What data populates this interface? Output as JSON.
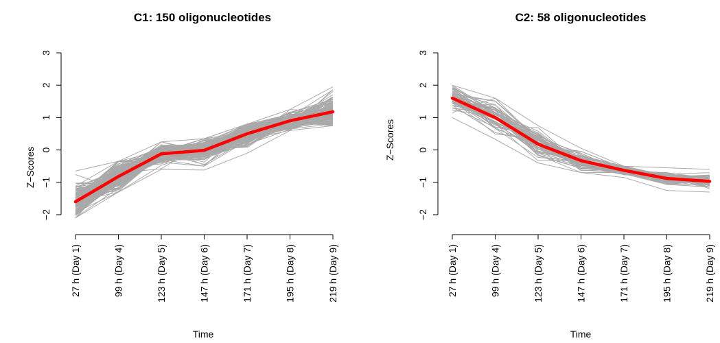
{
  "chart_data": [
    {
      "type": "line",
      "title": "C1: 150 oligonucleotides",
      "xlabel": "Time",
      "ylabel": "Z−Scores",
      "categories": [
        "27 h (Day 1)",
        "99 h (Day 4)",
        "123 h (Day 5)",
        "147 h (Day 6)",
        "171 h (Day 7)",
        "195 h (Day 8)",
        "219 h (Day 9)"
      ],
      "ylim": [
        -2,
        3
      ],
      "yticks": [
        "−2",
        "−1",
        "0",
        "1",
        "2",
        "3"
      ],
      "grid": false,
      "member_series_color": "#a9a9a9",
      "mean_series_color": "#ff0000",
      "member_count": 150,
      "member_spread": [
        0.28,
        0.22,
        0.15,
        0.17,
        0.17,
        0.13,
        0.25
      ],
      "mean_values": [
        -1.6,
        -0.82,
        -0.12,
        -0.01,
        0.5,
        0.9,
        1.18
      ],
      "member_range_low": [
        -2.1,
        -1.3,
        -0.6,
        -0.62,
        -0.1,
        0.6,
        0.75
      ],
      "member_range_high": [
        -0.65,
        -0.35,
        0.25,
        0.35,
        0.8,
        1.25,
        1.95
      ]
    },
    {
      "type": "line",
      "title": "C2: 58 oligonucleotides",
      "xlabel": "Time",
      "ylabel": "Z−Scores",
      "categories": [
        "27 h (Day 1)",
        "99 h (Day 4)",
        "123 h (Day 5)",
        "147 h (Day 6)",
        "171 h (Day 7)",
        "195 h (Day 8)",
        "219 h (Day 9)"
      ],
      "ylim": [
        -2,
        3
      ],
      "yticks": [
        "−2",
        "−1",
        "0",
        "1",
        "2",
        "3"
      ],
      "grid": false,
      "member_series_color": "#a9a9a9",
      "mean_series_color": "#ff0000",
      "member_count": 58,
      "member_spread": [
        0.2,
        0.22,
        0.22,
        0.15,
        0.08,
        0.1,
        0.12
      ],
      "mean_values": [
        1.6,
        1.0,
        0.18,
        -0.33,
        -0.63,
        -0.88,
        -0.97
      ],
      "member_range_low": [
        1.0,
        0.33,
        -0.4,
        -0.7,
        -0.85,
        -1.25,
        -1.3
      ],
      "member_range_high": [
        2.0,
        1.6,
        0.75,
        0.05,
        -0.5,
        -0.55,
        -0.6
      ]
    }
  ]
}
